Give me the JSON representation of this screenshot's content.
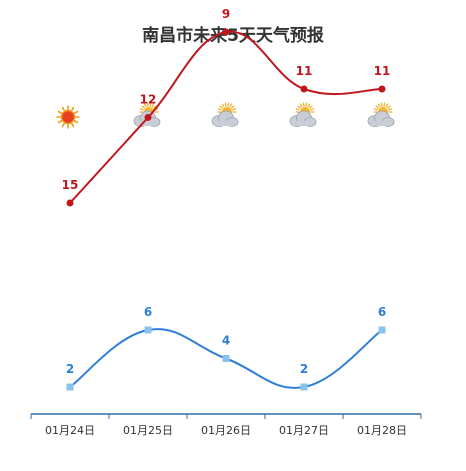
{
  "chart_data": {
    "type": "line",
    "title": "南昌市未来5天天气预报",
    "categories": [
      "01月24日",
      "01月25日",
      "01月26日",
      "01月27日",
      "01月28日"
    ],
    "weather_icons": [
      "sun-icon",
      "partly-cloudy-icon",
      "partly-cloudy-icon",
      "partly-cloudy-icon",
      "partly-cloudy-icon"
    ],
    "series": [
      {
        "key": "high",
        "values": [
          15,
          12,
          9,
          11,
          11
        ],
        "color": "#c0171d",
        "marker": "circle"
      },
      {
        "key": "low",
        "values": [
          2,
          6,
          4,
          2,
          6
        ],
        "color": "#2f7ed8",
        "marker": "square"
      }
    ],
    "legend": "none",
    "grid": false
  }
}
